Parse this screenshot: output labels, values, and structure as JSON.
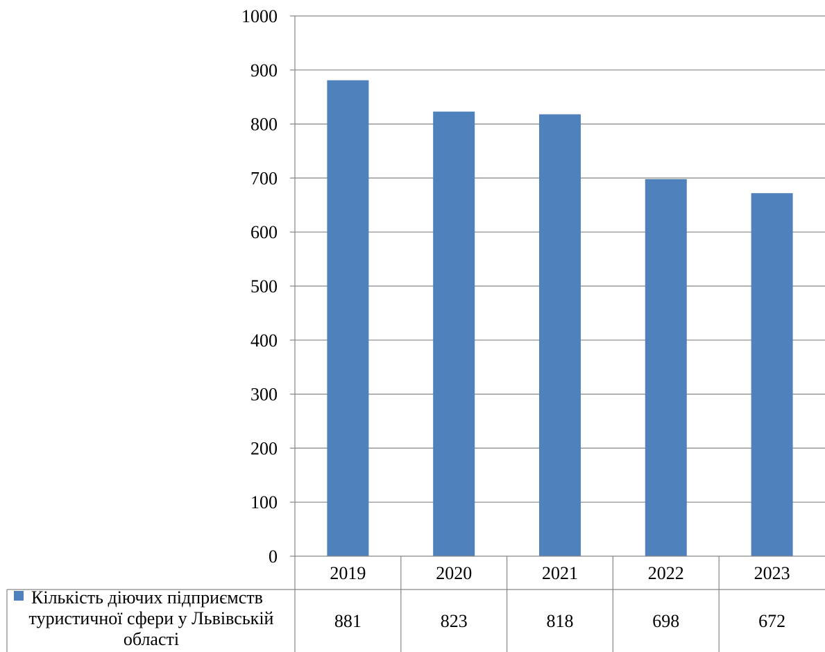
{
  "chart_data": {
    "type": "bar",
    "title": "",
    "xlabel": "",
    "ylabel": "",
    "categories": [
      "2019",
      "2020",
      "2021",
      "2022",
      "2023"
    ],
    "series": [
      {
        "name": "Кількість діючих підприємств туристичної сфери у Львівській області",
        "name_lines": [
          "Кількість діючих підприємств",
          "туристичної сфери у Львівській",
          "області"
        ],
        "values": [
          881,
          823,
          818,
          698,
          672
        ],
        "value_labels": [
          "881",
          "823",
          "818",
          "698",
          "672"
        ],
        "color": "#4f81bd"
      }
    ],
    "ylim": [
      0,
      1000
    ],
    "yticks": [
      0,
      100,
      200,
      300,
      400,
      500,
      600,
      700,
      800,
      900,
      1000
    ],
    "ytick_labels": [
      "0",
      "100",
      "200",
      "300",
      "400",
      "500",
      "600",
      "700",
      "800",
      "900",
      "1000"
    ],
    "grid": true,
    "legend": "data-table",
    "data_table": true
  }
}
